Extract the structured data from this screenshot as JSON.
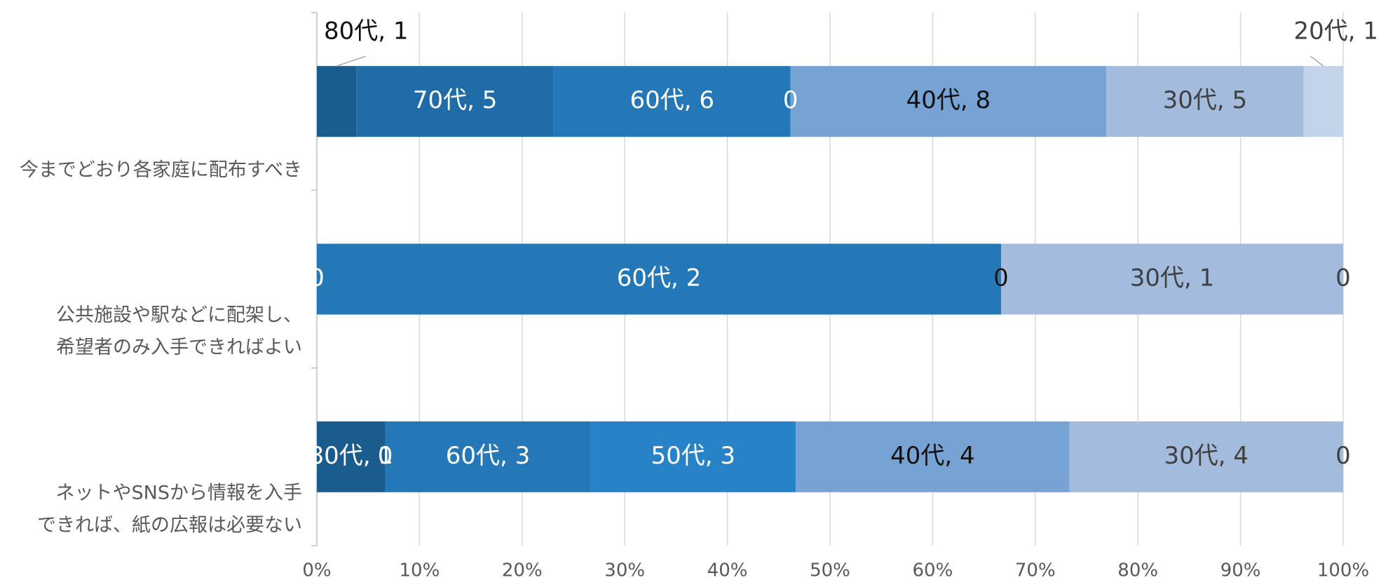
{
  "chart_data": {
    "type": "stacked_bar_horizontal",
    "stacking": "percent",
    "categories": [
      [
        "今までどおり各家庭に配布すべき"
      ],
      [
        "公共施設や駅などに配架し、",
        "希望者のみ入手できればよい"
      ],
      [
        "ネットやSNSから情報を入手",
        "できれば、紙の広報は必要ない"
      ]
    ],
    "series": [
      {
        "name": "80代",
        "color": "#1a5c8e",
        "label_color": "#ffffff",
        "values": [
          1,
          0,
          1
        ],
        "value_labels": [
          "80代, 1",
          "0",
          "80代, 1"
        ]
      },
      {
        "name": "70代",
        "color": "#1f6ca6",
        "label_color": "#ffffff",
        "values": [
          5,
          0,
          0
        ],
        "value_labels": [
          "70代, 5",
          "0",
          "0"
        ]
      },
      {
        "name": "60代",
        "color": "#2478b8",
        "label_color": "#ffffff",
        "values": [
          6,
          2,
          3
        ],
        "value_labels": [
          "60代, 6",
          "60代, 2",
          "60代, 3"
        ]
      },
      {
        "name": "50代",
        "color": "#2882c8",
        "label_color": "#ffffff",
        "values": [
          0,
          0,
          3
        ],
        "value_labels": [
          "0",
          "0",
          "50代, 3"
        ]
      },
      {
        "name": "40代",
        "color": "#77a2d4",
        "label_color": "#111111",
        "values": [
          8,
          0,
          4
        ],
        "value_labels": [
          "40代, 8",
          "0",
          "40代, 4"
        ]
      },
      {
        "name": "30代",
        "color": "#a3bbdd",
        "label_color": "#404040",
        "values": [
          5,
          1,
          4
        ],
        "value_labels": [
          "30代, 5",
          "30代, 1",
          "30代, 4"
        ]
      },
      {
        "name": "20代",
        "color": "#c3d3ea",
        "label_color": "#404040",
        "values": [
          1,
          0,
          0
        ],
        "value_labels": [
          "20代, 1",
          "0",
          "0"
        ]
      }
    ],
    "xlim": [
      0,
      100
    ],
    "xticks": [
      {
        "value": 0,
        "label": "0%"
      },
      {
        "value": 10,
        "label": "10%"
      },
      {
        "value": 20,
        "label": "20%"
      },
      {
        "value": 30,
        "label": "30%"
      },
      {
        "value": 40,
        "label": "40%"
      },
      {
        "value": 50,
        "label": "50%"
      },
      {
        "value": 60,
        "label": "60%"
      },
      {
        "value": 70,
        "label": "70%"
      },
      {
        "value": 80,
        "label": "80%"
      },
      {
        "value": 90,
        "label": "90%"
      },
      {
        "value": 100,
        "label": "100%"
      }
    ],
    "grid": true
  }
}
